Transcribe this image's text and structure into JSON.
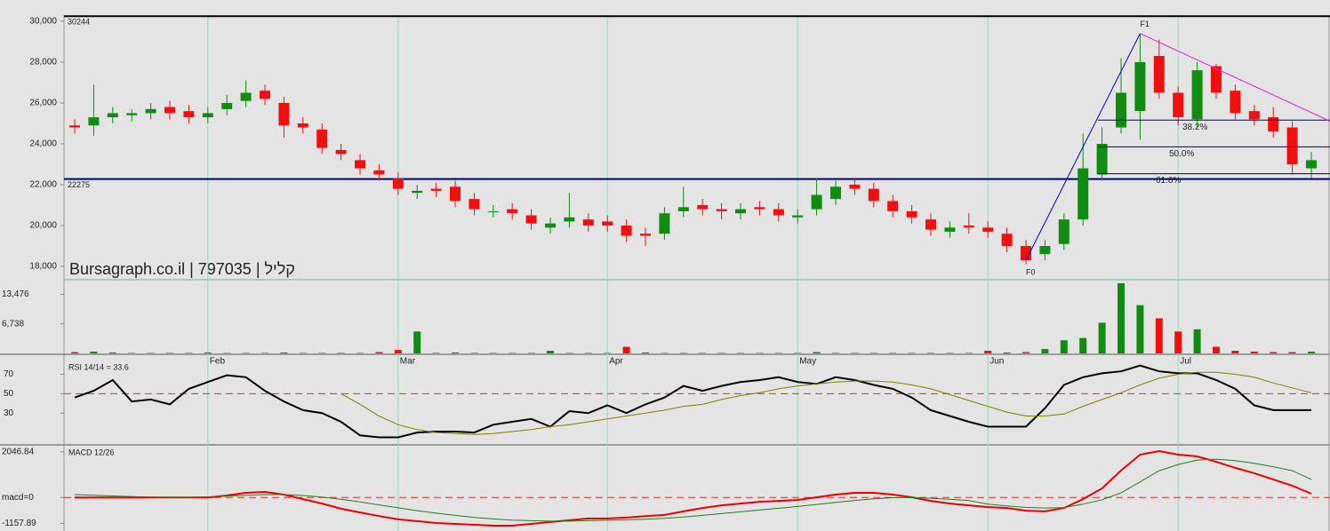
{
  "chart_data": [
    {
      "type": "candlestick",
      "title": "Bursagraph.co.il | 797035 | קליל",
      "categories": [
        null,
        null,
        null,
        null,
        null,
        null,
        null,
        "Feb",
        null,
        null,
        null,
        null,
        null,
        null,
        null,
        null,
        null,
        "Mar",
        null,
        null,
        null,
        null,
        null,
        null,
        null,
        null,
        null,
        null,
        "Apr",
        null,
        null,
        null,
        null,
        null,
        null,
        null,
        null,
        null,
        "May",
        null,
        null,
        null,
        null,
        null,
        null,
        null,
        null,
        null,
        "Jun",
        null,
        null,
        null,
        null,
        null,
        null,
        null,
        null,
        null,
        "Jul",
        null,
        null,
        null,
        null,
        null,
        null,
        null
      ],
      "open": [
        24900,
        24900,
        25300,
        25400,
        25500,
        25800,
        25600,
        25300,
        25700,
        26100,
        26600,
        26000,
        25000,
        24700,
        23700,
        23200,
        22700,
        22300,
        21600,
        21800,
        21900,
        21300,
        20700,
        20800,
        20500,
        19900,
        20200,
        20300,
        20200,
        20000,
        19600,
        19600,
        20700,
        21000,
        20800,
        20600,
        20900,
        20800,
        20400,
        20800,
        21300,
        22000,
        21800,
        21200,
        20700,
        20300,
        19700,
        20000,
        19900,
        19600,
        19000,
        18600,
        19100,
        20300,
        22500,
        24800,
        25600,
        28300,
        26500,
        25200,
        27800,
        26600,
        25600,
        25300,
        24800,
        22800
      ],
      "high": [
        25200,
        26900,
        25800,
        25700,
        26000,
        26100,
        25900,
        25800,
        26400,
        27100,
        26900,
        26300,
        25300,
        25000,
        24000,
        23500,
        23000,
        22600,
        22000,
        22100,
        22200,
        21600,
        21000,
        21100,
        20800,
        20400,
        21600,
        20600,
        20500,
        20300,
        19900,
        20900,
        21900,
        21300,
        21100,
        21100,
        21200,
        21100,
        20800,
        22300,
        22200,
        22300,
        22100,
        21500,
        21000,
        20600,
        20200,
        20600,
        20200,
        19900,
        19300,
        19300,
        20600,
        24500,
        24800,
        28200,
        29400,
        29100,
        26800,
        28000,
        27900,
        26900,
        25900,
        25800,
        25100,
        23600
      ],
      "low": [
        24500,
        24400,
        25000,
        25100,
        25200,
        25200,
        25000,
        25000,
        25400,
        25800,
        25900,
        24300,
        24500,
        23500,
        23200,
        22500,
        22200,
        21500,
        21300,
        21400,
        20900,
        20500,
        20400,
        20300,
        19800,
        19600,
        19900,
        19700,
        19700,
        19200,
        19000,
        19300,
        20400,
        20500,
        20300,
        20300,
        20500,
        20200,
        20100,
        20500,
        21000,
        21500,
        20900,
        20400,
        20100,
        19500,
        19400,
        19600,
        19400,
        18700,
        18100,
        18300,
        18800,
        20000,
        22200,
        24500,
        24200,
        26200,
        24900,
        24800,
        26200,
        25200,
        24900,
        24300,
        22500,
        22300
      ],
      "close": [
        24800,
        25300,
        25500,
        25500,
        25700,
        25500,
        25300,
        25500,
        26000,
        26500,
        26200,
        24900,
        24800,
        23800,
        23500,
        22800,
        22500,
        21800,
        21700,
        21700,
        21200,
        20800,
        20700,
        20600,
        20100,
        20100,
        20400,
        20000,
        20000,
        19500,
        19500,
        20600,
        20900,
        20800,
        20700,
        20800,
        20800,
        20500,
        20500,
        21500,
        21900,
        21800,
        21200,
        20700,
        20400,
        19800,
        19900,
        19900,
        19700,
        19000,
        18300,
        19000,
        20300,
        22800,
        24000,
        26500,
        28000,
        26500,
        25300,
        27600,
        26500,
        25500,
        25200,
        24600,
        23000,
        23200
      ],
      "up_color": "#108c10",
      "down_color": "#f01010",
      "ylim": [
        17350,
        30300
      ],
      "yticks": [
        {
          "value": 18000,
          "label": "18,000"
        },
        {
          "value": 20000,
          "label": "20,000"
        },
        {
          "value": 22000,
          "label": "22,000"
        },
        {
          "value": 24000,
          "label": "24,000"
        },
        {
          "value": 26000,
          "label": "26,000"
        },
        {
          "value": 28000,
          "label": "28,000"
        },
        {
          "value": 30000,
          "label": "30,000"
        }
      ],
      "hlines": [
        30244,
        22275
      ],
      "hline_colors": [
        "#000000",
        "#000080"
      ],
      "fibonacci": {
        "color": "#000080",
        "start": {
          "label": "F0",
          "index": 50,
          "value": 18300
        },
        "end": {
          "label": "F1",
          "index": 56,
          "value": 29400
        },
        "levels": [
          {
            "value": 38.2,
            "label": "38.2%"
          },
          {
            "value": 50.0,
            "label": "50.0%"
          },
          {
            "value": 61.8,
            "label": "61.8%"
          }
        ]
      },
      "trendline": {
        "color": "#e020e0",
        "from": {
          "index": 56,
          "value": 29400
        },
        "to": {
          "index": 66,
          "value": 25100
        }
      }
    },
    {
      "type": "volume",
      "values": [
        300,
        400,
        200,
        100,
        100,
        100,
        100,
        200,
        100,
        100,
        100,
        200,
        100,
        100,
        100,
        100,
        300,
        800,
        5000,
        100,
        200,
        100,
        100,
        100,
        100,
        600,
        100,
        100,
        100,
        1500,
        200,
        100,
        100,
        100,
        100,
        100,
        100,
        100,
        100,
        300,
        100,
        100,
        100,
        100,
        100,
        100,
        100,
        100,
        600,
        200,
        300,
        1000,
        3000,
        3500,
        7000,
        16000,
        11000,
        8000,
        5000,
        5500,
        1500,
        600,
        400,
        300,
        300,
        400
      ],
      "ylim": [
        0,
        16600
      ],
      "yticks": [
        {
          "value": 6738,
          "label": "6,738"
        },
        {
          "value": 13476,
          "label": "13,476"
        }
      ]
    },
    {
      "type": "line",
      "title": "RSI 14/14 = 33.6",
      "series": [
        {
          "color": "#000000",
          "values": [
            46,
            53,
            64,
            42,
            44,
            39,
            55,
            62,
            69,
            67,
            53,
            42,
            33,
            30,
            21,
            7,
            5,
            5,
            10,
            11,
            11,
            10,
            18,
            21,
            24,
            16,
            32,
            30,
            38,
            30,
            39,
            46,
            58,
            53,
            58,
            62,
            64,
            67,
            62,
            60,
            67,
            64,
            59,
            55,
            46,
            33,
            27,
            21,
            16,
            16,
            16,
            35,
            59,
            67,
            71,
            73,
            79,
            73,
            71,
            71,
            64,
            55,
            38,
            33,
            33,
            33
          ]
        },
        {
          "color": "#808000",
          "values": [
            null,
            null,
            null,
            null,
            null,
            null,
            null,
            null,
            null,
            null,
            null,
            null,
            null,
            null,
            50,
            39,
            27,
            18,
            13,
            10,
            9,
            8,
            9,
            11,
            13,
            16,
            18,
            21,
            24,
            27,
            30,
            33,
            37,
            39,
            44,
            48,
            51,
            55,
            58,
            60,
            62,
            63,
            63,
            62,
            59,
            55,
            49,
            43,
            37,
            31,
            27,
            27,
            29,
            37,
            44,
            51,
            59,
            66,
            70,
            72,
            72,
            70,
            67,
            61,
            56,
            51
          ]
        }
      ],
      "ylim": [
        0,
        86
      ],
      "yticks": [
        30,
        50,
        70
      ],
      "ref_line": 50
    },
    {
      "type": "line",
      "title": "MACD 12/26",
      "series": [
        {
          "color": "#ee0000",
          "values": [
            0,
            0,
            0,
            0,
            0,
            0,
            0,
            0,
            90,
            210,
            250,
            130,
            -70,
            -270,
            -500,
            -670,
            -830,
            -980,
            -1060,
            -1140,
            -1180,
            -1220,
            -1260,
            -1260,
            -1180,
            -1100,
            -1020,
            -940,
            -940,
            -900,
            -830,
            -780,
            -620,
            -470,
            -350,
            -270,
            -190,
            -150,
            -110,
            10,
            130,
            210,
            210,
            130,
            10,
            -150,
            -270,
            -350,
            -430,
            -470,
            -590,
            -620,
            -470,
            -70,
            410,
            1210,
            1920,
            2080,
            1920,
            1840,
            1600,
            1330,
            1090,
            810,
            530,
            170
          ]
        },
        {
          "color": "#208020",
          "values": [
            130,
            100,
            70,
            40,
            20,
            10,
            10,
            30,
            60,
            100,
            130,
            130,
            90,
            20,
            -80,
            -200,
            -330,
            -460,
            -590,
            -700,
            -800,
            -890,
            -960,
            -1010,
            -1040,
            -1060,
            -1060,
            -1040,
            -1020,
            -1000,
            -970,
            -930,
            -870,
            -800,
            -720,
            -640,
            -560,
            -480,
            -400,
            -310,
            -220,
            -130,
            -60,
            -10,
            0,
            -30,
            -80,
            -140,
            -300,
            -380,
            -440,
            -470,
            -450,
            -300,
            -100,
            210,
            700,
            1200,
            1480,
            1680,
            1720,
            1650,
            1530,
            1380,
            1200,
            810
          ]
        }
      ],
      "ylim": [
        -1500,
        2200
      ],
      "yticks": [
        -1157.89,
        {
          "value": 0,
          "label": "macd=0"
        },
        2046.84
      ],
      "ref_line": 0
    }
  ]
}
